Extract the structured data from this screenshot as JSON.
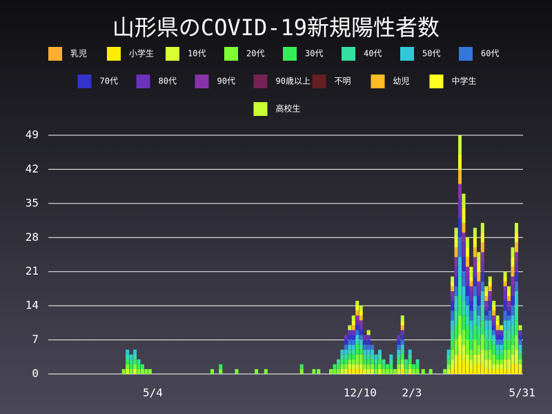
{
  "chart_data": {
    "type": "bar",
    "stacked": true,
    "title": "山形県のCOVID-19新規陽性者数",
    "x": [
      58,
      62,
      66,
      70,
      74,
      78,
      82,
      86,
      152,
      161,
      178,
      199,
      209,
      247,
      260,
      265,
      278,
      282,
      286,
      290,
      294,
      298,
      302,
      306,
      310,
      314,
      318,
      322,
      326,
      330,
      334,
      338,
      342,
      346,
      350,
      354,
      358,
      362,
      366,
      370,
      376,
      384,
      399,
      403,
      407,
      411,
      415,
      419,
      423,
      427,
      431,
      435,
      439,
      443,
      447,
      451,
      455,
      459,
      463,
      467,
      471,
      475,
      479
    ],
    "xlim": [
      0,
      482
    ],
    "xticks": [
      {
        "value": 89,
        "label": "5/4"
      },
      {
        "value": 309,
        "label": "12/10"
      },
      {
        "value": 364,
        "label": "2/3"
      },
      {
        "value": 481,
        "label": "5/31"
      }
    ],
    "ylim": [
      0,
      49
    ],
    "yticks": [
      0,
      7,
      14,
      21,
      28,
      35,
      42,
      49
    ],
    "grid": true,
    "series": [
      {
        "name": "乳児",
        "color": "#fbb034",
        "values": [
          0,
          0,
          0,
          0,
          0,
          0,
          0,
          0,
          0,
          0,
          0,
          0,
          0,
          0,
          0,
          0,
          0,
          0,
          0,
          0,
          0,
          0,
          0,
          0,
          0,
          0,
          0,
          0,
          0,
          0,
          0,
          0,
          0,
          0,
          0,
          0,
          0,
          0,
          0,
          0,
          0,
          0,
          0,
          0,
          0,
          0,
          0,
          0,
          0,
          0,
          0,
          0,
          0,
          0,
          0,
          0,
          0,
          0,
          0,
          0,
          0,
          0,
          0
        ]
      },
      {
        "name": "小学生",
        "color": "#ffee00",
        "values": [
          0,
          0,
          0,
          0,
          0,
          0,
          0,
          0,
          0,
          0,
          0,
          0,
          0,
          0,
          0,
          0,
          0,
          0,
          0,
          0,
          0,
          1,
          1,
          1,
          1,
          0,
          0,
          0,
          0,
          0,
          0,
          0,
          0,
          0,
          0,
          1,
          0,
          0,
          0,
          0,
          0,
          0,
          0,
          0,
          1,
          2,
          4,
          3,
          2,
          1,
          2,
          2,
          2,
          1,
          1,
          1,
          1,
          1,
          1,
          1,
          2,
          2,
          1
        ]
      },
      {
        "name": "10代",
        "color": "#d9ff33",
        "values": [
          0,
          1,
          0,
          1,
          0,
          0,
          0,
          0,
          0,
          0,
          0,
          0,
          0,
          0,
          0,
          0,
          0,
          0,
          0,
          1,
          1,
          1,
          1,
          1,
          1,
          1,
          1,
          1,
          0,
          1,
          0,
          0,
          0,
          0,
          1,
          1,
          0,
          1,
          0,
          0,
          0,
          0,
          0,
          1,
          2,
          2,
          4,
          3,
          2,
          2,
          2,
          2,
          3,
          2,
          2,
          1,
          1,
          1,
          2,
          2,
          2,
          3,
          1
        ]
      },
      {
        "name": "20代",
        "color": "#80ff33",
        "values": [
          1,
          1,
          1,
          1,
          1,
          1,
          1,
          1,
          1,
          1,
          1,
          1,
          1,
          1,
          1,
          1,
          1,
          1,
          1,
          1,
          1,
          1,
          1,
          2,
          2,
          1,
          1,
          1,
          1,
          1,
          1,
          1,
          1,
          1,
          1,
          1,
          1,
          1,
          1,
          1,
          1,
          1,
          1,
          1,
          2,
          3,
          4,
          3,
          3,
          2,
          3,
          2,
          3,
          2,
          2,
          2,
          1,
          1,
          2,
          2,
          2,
          3,
          1
        ]
      },
      {
        "name": "30代",
        "color": "#33ee55",
        "values": [
          0,
          1,
          1,
          1,
          1,
          1,
          0,
          0,
          0,
          1,
          0,
          0,
          0,
          1,
          0,
          0,
          0,
          1,
          1,
          1,
          1,
          1,
          1,
          2,
          1,
          1,
          1,
          1,
          1,
          1,
          1,
          1,
          1,
          0,
          1,
          1,
          1,
          1,
          1,
          1,
          0,
          0,
          0,
          1,
          2,
          3,
          4,
          3,
          3,
          2,
          3,
          2,
          3,
          2,
          2,
          2,
          1,
          1,
          2,
          2,
          2,
          3,
          1
        ]
      },
      {
        "name": "40代",
        "color": "#33e0a0",
        "values": [
          0,
          1,
          1,
          1,
          1,
          0,
          0,
          0,
          0,
          0,
          0,
          0,
          0,
          0,
          0,
          0,
          0,
          0,
          1,
          1,
          1,
          1,
          1,
          1,
          1,
          1,
          1,
          1,
          1,
          1,
          1,
          0,
          1,
          0,
          1,
          1,
          1,
          1,
          0,
          1,
          0,
          0,
          0,
          1,
          2,
          3,
          4,
          3,
          2,
          2,
          3,
          2,
          3,
          2,
          2,
          1,
          1,
          1,
          2,
          2,
          2,
          3,
          1
        ]
      },
      {
        "name": "50代",
        "color": "#33c8d8",
        "values": [
          0,
          1,
          1,
          1,
          0,
          0,
          0,
          0,
          0,
          0,
          0,
          0,
          0,
          0,
          0,
          0,
          0,
          0,
          0,
          1,
          1,
          1,
          1,
          1,
          1,
          1,
          1,
          1,
          1,
          1,
          0,
          0,
          1,
          0,
          1,
          1,
          0,
          1,
          0,
          0,
          0,
          0,
          0,
          1,
          2,
          3,
          4,
          3,
          2,
          2,
          3,
          2,
          3,
          2,
          2,
          1,
          1,
          1,
          2,
          2,
          2,
          3,
          1
        ]
      },
      {
        "name": "60代",
        "color": "#3377dd",
        "values": [
          0,
          0,
          0,
          0,
          0,
          0,
          0,
          0,
          0,
          0,
          0,
          0,
          0,
          0,
          0,
          0,
          0,
          0,
          0,
          0,
          1,
          1,
          1,
          1,
          1,
          1,
          1,
          1,
          0,
          0,
          0,
          0,
          0,
          0,
          1,
          1,
          0,
          0,
          0,
          0,
          0,
          0,
          0,
          0,
          2,
          2,
          4,
          3,
          2,
          2,
          2,
          2,
          2,
          1,
          2,
          1,
          1,
          1,
          2,
          1,
          2,
          2,
          1
        ]
      },
      {
        "name": "70代",
        "color": "#3333cc",
        "values": [
          0,
          0,
          0,
          0,
          0,
          0,
          0,
          0,
          0,
          0,
          0,
          0,
          0,
          0,
          0,
          0,
          0,
          0,
          0,
          0,
          1,
          1,
          1,
          1,
          1,
          1,
          1,
          0,
          0,
          0,
          0,
          0,
          0,
          0,
          1,
          1,
          0,
          0,
          0,
          0,
          0,
          0,
          0,
          0,
          2,
          2,
          4,
          3,
          2,
          2,
          2,
          2,
          2,
          1,
          2,
          1,
          1,
          1,
          2,
          1,
          2,
          2,
          1
        ]
      },
      {
        "name": "80代",
        "color": "#6a33bb",
        "values": [
          0,
          0,
          0,
          0,
          0,
          0,
          0,
          0,
          0,
          0,
          0,
          0,
          0,
          0,
          0,
          0,
          0,
          0,
          0,
          0,
          1,
          1,
          1,
          1,
          1,
          1,
          1,
          0,
          0,
          0,
          0,
          0,
          0,
          0,
          1,
          1,
          0,
          0,
          0,
          0,
          0,
          0,
          0,
          0,
          1,
          2,
          4,
          3,
          2,
          2,
          2,
          2,
          2,
          1,
          1,
          1,
          1,
          1,
          2,
          1,
          2,
          2,
          1
        ]
      },
      {
        "name": "90代",
        "color": "#8833aa",
        "values": [
          0,
          0,
          0,
          0,
          0,
          0,
          0,
          0,
          0,
          0,
          0,
          0,
          0,
          0,
          0,
          0,
          0,
          0,
          0,
          0,
          0,
          0,
          0,
          1,
          1,
          0,
          0,
          0,
          0,
          0,
          0,
          0,
          0,
          0,
          0,
          0,
          0,
          0,
          0,
          0,
          0,
          0,
          0,
          0,
          1,
          2,
          3,
          2,
          2,
          1,
          2,
          1,
          2,
          1,
          1,
          1,
          0,
          0,
          1,
          1,
          2,
          2,
          0
        ]
      },
      {
        "name": "90歳以上",
        "color": "#772255",
        "values": [
          0,
          0,
          0,
          0,
          0,
          0,
          0,
          0,
          0,
          0,
          0,
          0,
          0,
          0,
          0,
          0,
          0,
          0,
          0,
          0,
          0,
          0,
          0,
          0,
          0,
          0,
          0,
          0,
          0,
          0,
          0,
          0,
          0,
          0,
          0,
          0,
          0,
          0,
          0,
          0,
          0,
          0,
          0,
          0,
          0,
          0,
          0,
          0,
          0,
          0,
          0,
          0,
          0,
          0,
          0,
          0,
          0,
          0,
          0,
          0,
          0,
          0,
          0
        ]
      },
      {
        "name": "不明",
        "color": "#661f22",
        "values": [
          0,
          0,
          0,
          0,
          0,
          0,
          0,
          0,
          0,
          0,
          0,
          0,
          0,
          0,
          0,
          0,
          0,
          0,
          0,
          0,
          0,
          0,
          0,
          0,
          0,
          0,
          0,
          0,
          0,
          0,
          0,
          0,
          0,
          0,
          0,
          0,
          0,
          0,
          0,
          0,
          0,
          0,
          0,
          0,
          0,
          0,
          0,
          0,
          0,
          0,
          0,
          0,
          0,
          0,
          0,
          0,
          0,
          0,
          0,
          0,
          0,
          0,
          0
        ]
      },
      {
        "name": "幼児",
        "color": "#ffbb22",
        "values": [
          0,
          0,
          0,
          0,
          0,
          0,
          0,
          0,
          0,
          0,
          0,
          0,
          0,
          0,
          0,
          0,
          0,
          0,
          0,
          0,
          0,
          0,
          1,
          1,
          1,
          0,
          0,
          0,
          0,
          0,
          0,
          0,
          0,
          0,
          0,
          1,
          0,
          0,
          0,
          0,
          0,
          0,
          0,
          0,
          1,
          2,
          3,
          2,
          2,
          1,
          2,
          2,
          2,
          1,
          1,
          1,
          1,
          0,
          1,
          1,
          2,
          2,
          0
        ]
      },
      {
        "name": "中学生",
        "color": "#ffff22",
        "values": [
          0,
          0,
          0,
          0,
          0,
          0,
          0,
          0,
          0,
          0,
          0,
          0,
          0,
          0,
          0,
          0,
          0,
          0,
          0,
          0,
          0,
          0,
          1,
          1,
          1,
          0,
          0,
          0,
          0,
          0,
          0,
          0,
          0,
          0,
          0,
          1,
          0,
          0,
          0,
          0,
          0,
          0,
          0,
          0,
          1,
          2,
          3,
          3,
          2,
          1,
          2,
          2,
          2,
          1,
          1,
          1,
          1,
          0,
          1,
          1,
          2,
          2,
          0
        ]
      },
      {
        "name": "高校生",
        "color": "#ccff33",
        "values": [
          0,
          0,
          0,
          0,
          0,
          0,
          0,
          0,
          0,
          0,
          0,
          0,
          0,
          0,
          0,
          0,
          0,
          0,
          0,
          0,
          0,
          1,
          1,
          1,
          1,
          0,
          1,
          0,
          0,
          0,
          0,
          0,
          0,
          0,
          0,
          1,
          0,
          0,
          0,
          0,
          0,
          0,
          0,
          0,
          1,
          2,
          4,
          3,
          2,
          2,
          2,
          2,
          2,
          1,
          1,
          1,
          1,
          1,
          1,
          1,
          2,
          2,
          1
        ]
      }
    ]
  }
}
